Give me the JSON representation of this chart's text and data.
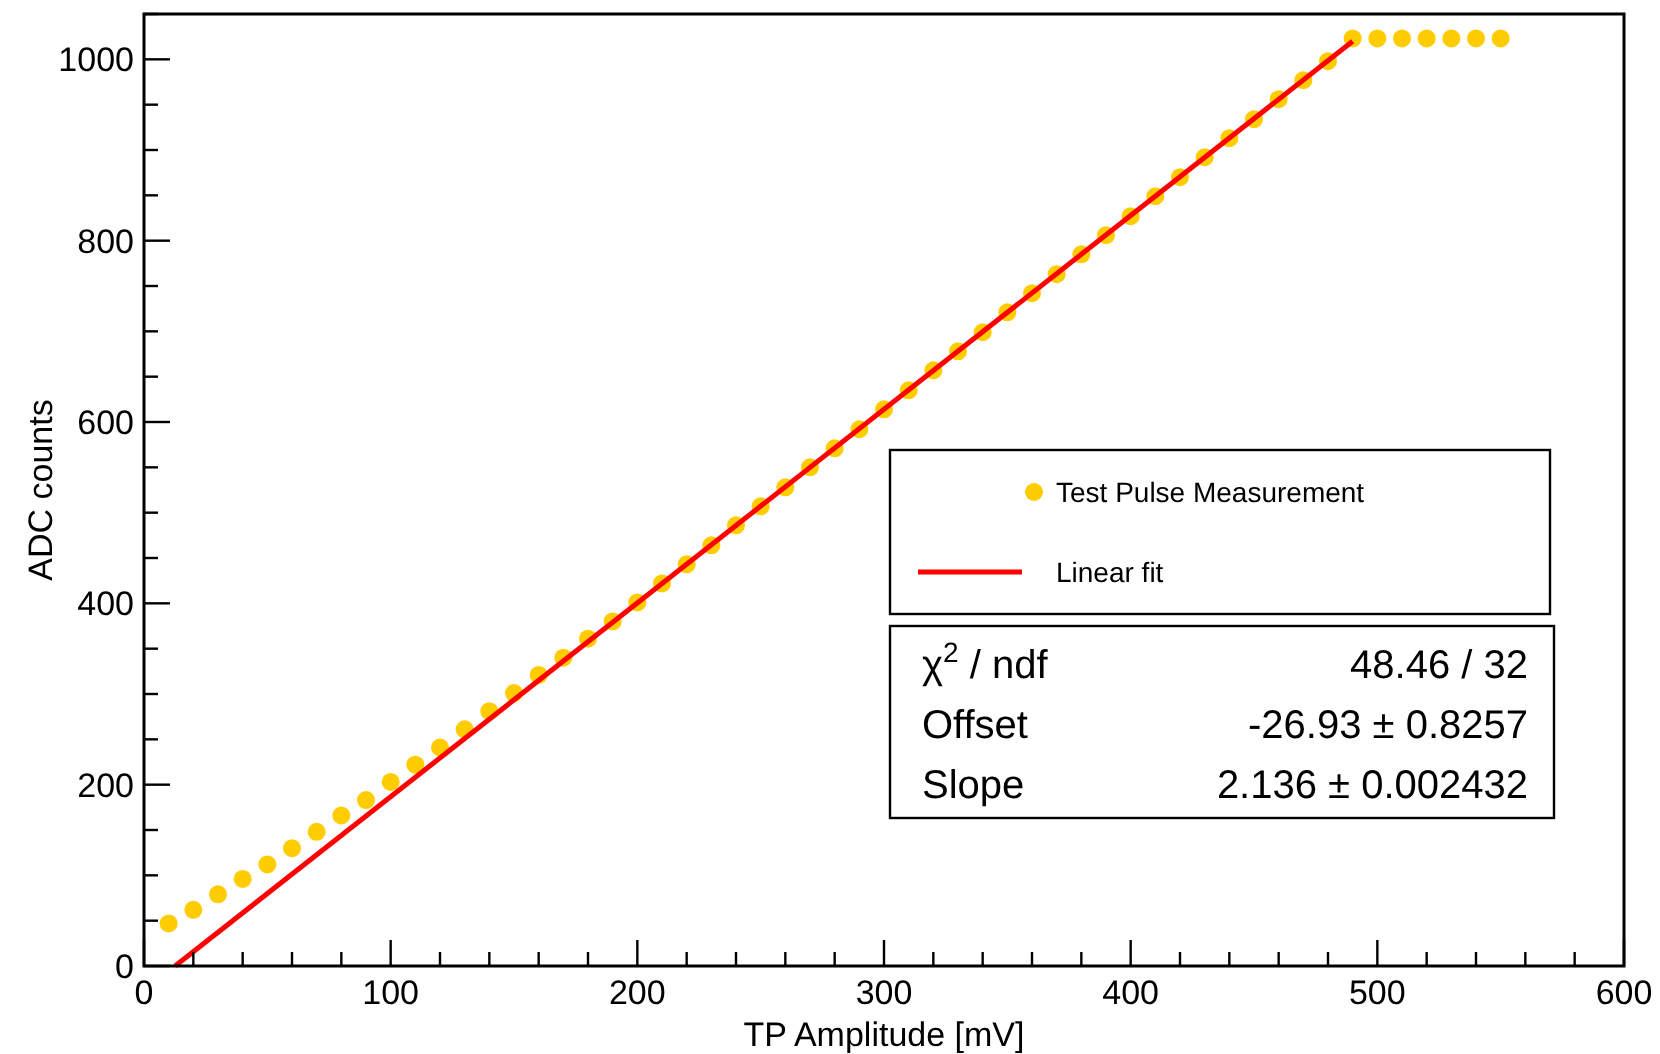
{
  "chart_data": {
    "type": "scatter",
    "xlabel": "TP Amplitude [mV]",
    "ylabel": "ADC counts",
    "xlim": [
      0,
      600
    ],
    "ylim": [
      0,
      1050
    ],
    "xticks": [
      0,
      {
        "value": 20,
        "label": null
      },
      {
        "value": 40,
        "label": null
      },
      {
        "value": 60,
        "label": null
      },
      {
        "value": 80,
        "label": null
      },
      100,
      {
        "value": 120,
        "label": null
      },
      {
        "value": 140,
        "label": null
      },
      {
        "value": 160,
        "label": null
      },
      {
        "value": 180,
        "label": null
      },
      200,
      {
        "value": 220,
        "label": null
      },
      {
        "value": 240,
        "label": null
      },
      {
        "value": 260,
        "label": null
      },
      {
        "value": 280,
        "label": null
      },
      300,
      {
        "value": 320,
        "label": null
      },
      {
        "value": 340,
        "label": null
      },
      {
        "value": 360,
        "label": null
      },
      {
        "value": 380,
        "label": null
      },
      400,
      {
        "value": 420,
        "label": null
      },
      {
        "value": 440,
        "label": null
      },
      {
        "value": 460,
        "label": null
      },
      {
        "value": 480,
        "label": null
      },
      500,
      {
        "value": 520,
        "label": null
      },
      {
        "value": 540,
        "label": null
      },
      {
        "value": 560,
        "label": null
      },
      {
        "value": 580,
        "label": null
      },
      600
    ],
    "yticks": [
      0,
      {
        "value": 50,
        "label": null
      },
      {
        "value": 100,
        "label": null
      },
      {
        "value": 150,
        "label": null
      },
      200,
      {
        "value": 250,
        "label": null
      },
      {
        "value": 300,
        "label": null
      },
      {
        "value": 350,
        "label": null
      },
      400,
      {
        "value": 450,
        "label": null
      },
      {
        "value": 500,
        "label": null
      },
      {
        "value": 550,
        "label": null
      },
      600,
      {
        "value": 650,
        "label": null
      },
      {
        "value": 700,
        "label": null
      },
      {
        "value": 750,
        "label": null
      },
      800,
      {
        "value": 850,
        "label": null
      },
      {
        "value": 900,
        "label": null
      },
      {
        "value": 950,
        "label": null
      },
      1000,
      {
        "value": 1050,
        "label": null
      }
    ],
    "grid": false,
    "legend": "right",
    "series": [
      {
        "name": "Test Pulse Measurement",
        "marker": "circle",
        "color": "#ffcc00",
        "x": [
          10,
          20,
          30,
          40,
          50,
          60,
          70,
          80,
          90,
          100,
          110,
          120,
          130,
          140,
          150,
          160,
          170,
          180,
          190,
          200,
          210,
          220,
          230,
          240,
          250,
          260,
          270,
          280,
          290,
          300,
          310,
          320,
          330,
          340,
          350,
          360,
          370,
          380,
          390,
          400,
          410,
          420,
          430,
          440,
          450,
          460,
          470,
          480,
          490,
          500,
          510,
          520,
          530,
          540,
          550
        ],
        "values": [
          47,
          62,
          79,
          96,
          112,
          130,
          148,
          166,
          183,
          203,
          222,
          241,
          261,
          281,
          301,
          321,
          340,
          361,
          380,
          401,
          422,
          443,
          464,
          486,
          507,
          528,
          550,
          571,
          592,
          614,
          635,
          657,
          678,
          699,
          721,
          742,
          763,
          785,
          806,
          827,
          849,
          870,
          892,
          913,
          934,
          956,
          977,
          998,
          1023,
          1023,
          1023,
          1023,
          1023,
          1023,
          1023
        ]
      },
      {
        "name": "Linear fit",
        "type": "line",
        "marker": "none",
        "line_style": "solid",
        "color": "#ff0000",
        "x": [
          12.6,
          490
        ],
        "values": [
          0,
          1020
        ]
      }
    ],
    "annotations": [
      "χ$^{2}$ / ndf",
      "48.46 / 32",
      "Offset",
      "-26.93 ± 0.8257",
      "Slope",
      "2.136 ± 0.002432"
    ]
  }
}
